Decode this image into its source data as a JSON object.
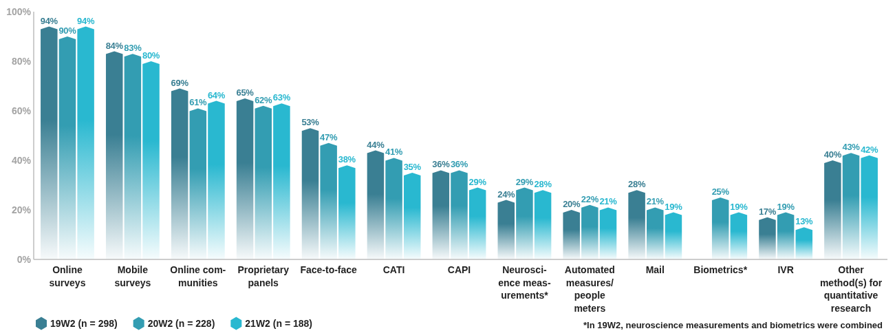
{
  "chart_data": {
    "type": "bar",
    "categories": [
      "Online\nsurveys",
      "Mobile\nsurveys",
      "Online com-\nmunities",
      "Proprietary\npanels",
      "Face-to-face",
      "CATI",
      "CAPI",
      "Neurosci-\nence meas-\nurements*",
      "Automated\nmeasures/\npeople\nmeters",
      "Mail",
      "Biometrics*",
      "IVR",
      "Other\nmethod(s) for\nquantitative\nresearch"
    ],
    "series": [
      {
        "name": "19W2 (n = 298)",
        "color": "#3a7f93",
        "values": [
          94,
          84,
          69,
          65,
          53,
          44,
          36,
          24,
          20,
          28,
          null,
          17,
          40
        ],
        "value_labels": [
          "94%",
          "84%",
          "69%",
          "65%",
          "53%",
          "44%",
          "36%",
          "24%",
          "20%",
          "28%",
          null,
          "17%",
          "40%"
        ]
      },
      {
        "name": "20W2 (n = 228)",
        "color": "#339db2",
        "values": [
          90,
          83,
          61,
          62,
          47,
          41,
          36,
          29,
          22,
          21,
          25,
          19,
          43
        ],
        "value_labels": [
          "90%",
          "83%",
          "61%",
          "62%",
          "47%",
          "41%",
          "36%",
          "29%",
          "22%",
          "21%",
          "25%",
          "19%",
          "43%"
        ]
      },
      {
        "name": "21W2 (n = 188)",
        "color": "#29b8d0",
        "values": [
          94,
          80,
          64,
          63,
          38,
          35,
          29,
          28,
          21,
          19,
          19,
          13,
          42
        ],
        "value_labels": [
          "94%",
          "80%",
          "64%",
          "63%",
          "38%",
          "35%",
          "29%",
          "28%",
          "21%",
          "19%",
          "19%",
          "13%",
          "42%"
        ]
      }
    ],
    "ylim": [
      0,
      100
    ],
    "yticks": [
      {
        "value": 0,
        "label": "0%"
      },
      {
        "value": 20,
        "label": "20%"
      },
      {
        "value": 40,
        "label": "40%"
      },
      {
        "value": 60,
        "label": "60%"
      },
      {
        "value": 80,
        "label": "80%"
      },
      {
        "value": 100,
        "label": "100%"
      }
    ],
    "legend": "bottom left",
    "annotations": [
      "*In 19W2, neuroscience measurements and biometrics were combined"
    ]
  }
}
